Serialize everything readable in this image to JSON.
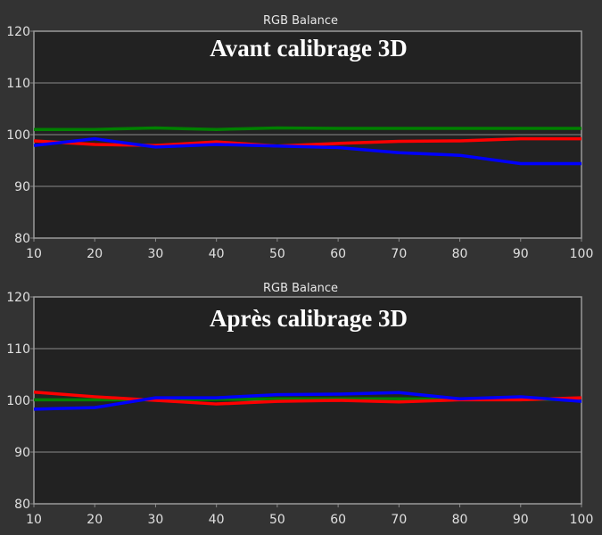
{
  "chart_data": [
    {
      "type": "line",
      "title": "RGB Balance",
      "annotation": "Avant calibrage 3D",
      "x": [
        10,
        20,
        30,
        40,
        50,
        60,
        70,
        80,
        90,
        100
      ],
      "xlim": [
        10,
        100
      ],
      "ylim": [
        80,
        120
      ],
      "xticks": [
        10,
        20,
        30,
        40,
        50,
        60,
        70,
        80,
        90,
        100
      ],
      "yticks": [
        80,
        90,
        100,
        110,
        120
      ],
      "grid": true,
      "series": [
        {
          "color": "#008000",
          "values": [
            101.0,
            101.0,
            101.3,
            101.0,
            101.3,
            101.2,
            101.2,
            101.2,
            101.2,
            101.2
          ]
        },
        {
          "color": "#ff0000",
          "values": [
            98.8,
            98.1,
            97.9,
            98.6,
            97.8,
            98.3,
            98.7,
            98.8,
            99.2,
            99.2
          ]
        },
        {
          "color": "#0000ff",
          "values": [
            97.9,
            99.2,
            97.6,
            98.1,
            97.8,
            97.5,
            96.5,
            96.0,
            94.4,
            94.4
          ]
        }
      ]
    },
    {
      "type": "line",
      "title": "RGB Balance",
      "annotation": "Après calibrage 3D",
      "x": [
        10,
        20,
        30,
        40,
        50,
        60,
        70,
        80,
        90,
        100
      ],
      "xlim": [
        10,
        100
      ],
      "ylim": [
        80,
        120
      ],
      "xticks": [
        10,
        20,
        30,
        40,
        50,
        60,
        70,
        80,
        90,
        100
      ],
      "yticks": [
        80,
        90,
        100,
        110,
        120
      ],
      "grid": true,
      "series": [
        {
          "color": "#008000",
          "values": [
            100.1,
            100.1,
            100.1,
            100.2,
            100.3,
            100.3,
            100.3,
            100.2,
            100.2,
            100.2
          ]
        },
        {
          "color": "#ff0000",
          "values": [
            101.6,
            100.7,
            100.0,
            99.3,
            99.8,
            100.0,
            99.7,
            100.1,
            100.1,
            100.5
          ]
        },
        {
          "color": "#0000ff",
          "values": [
            98.3,
            98.6,
            100.5,
            100.5,
            101.1,
            101.2,
            101.5,
            100.3,
            100.7,
            99.8
          ]
        }
      ]
    }
  ]
}
